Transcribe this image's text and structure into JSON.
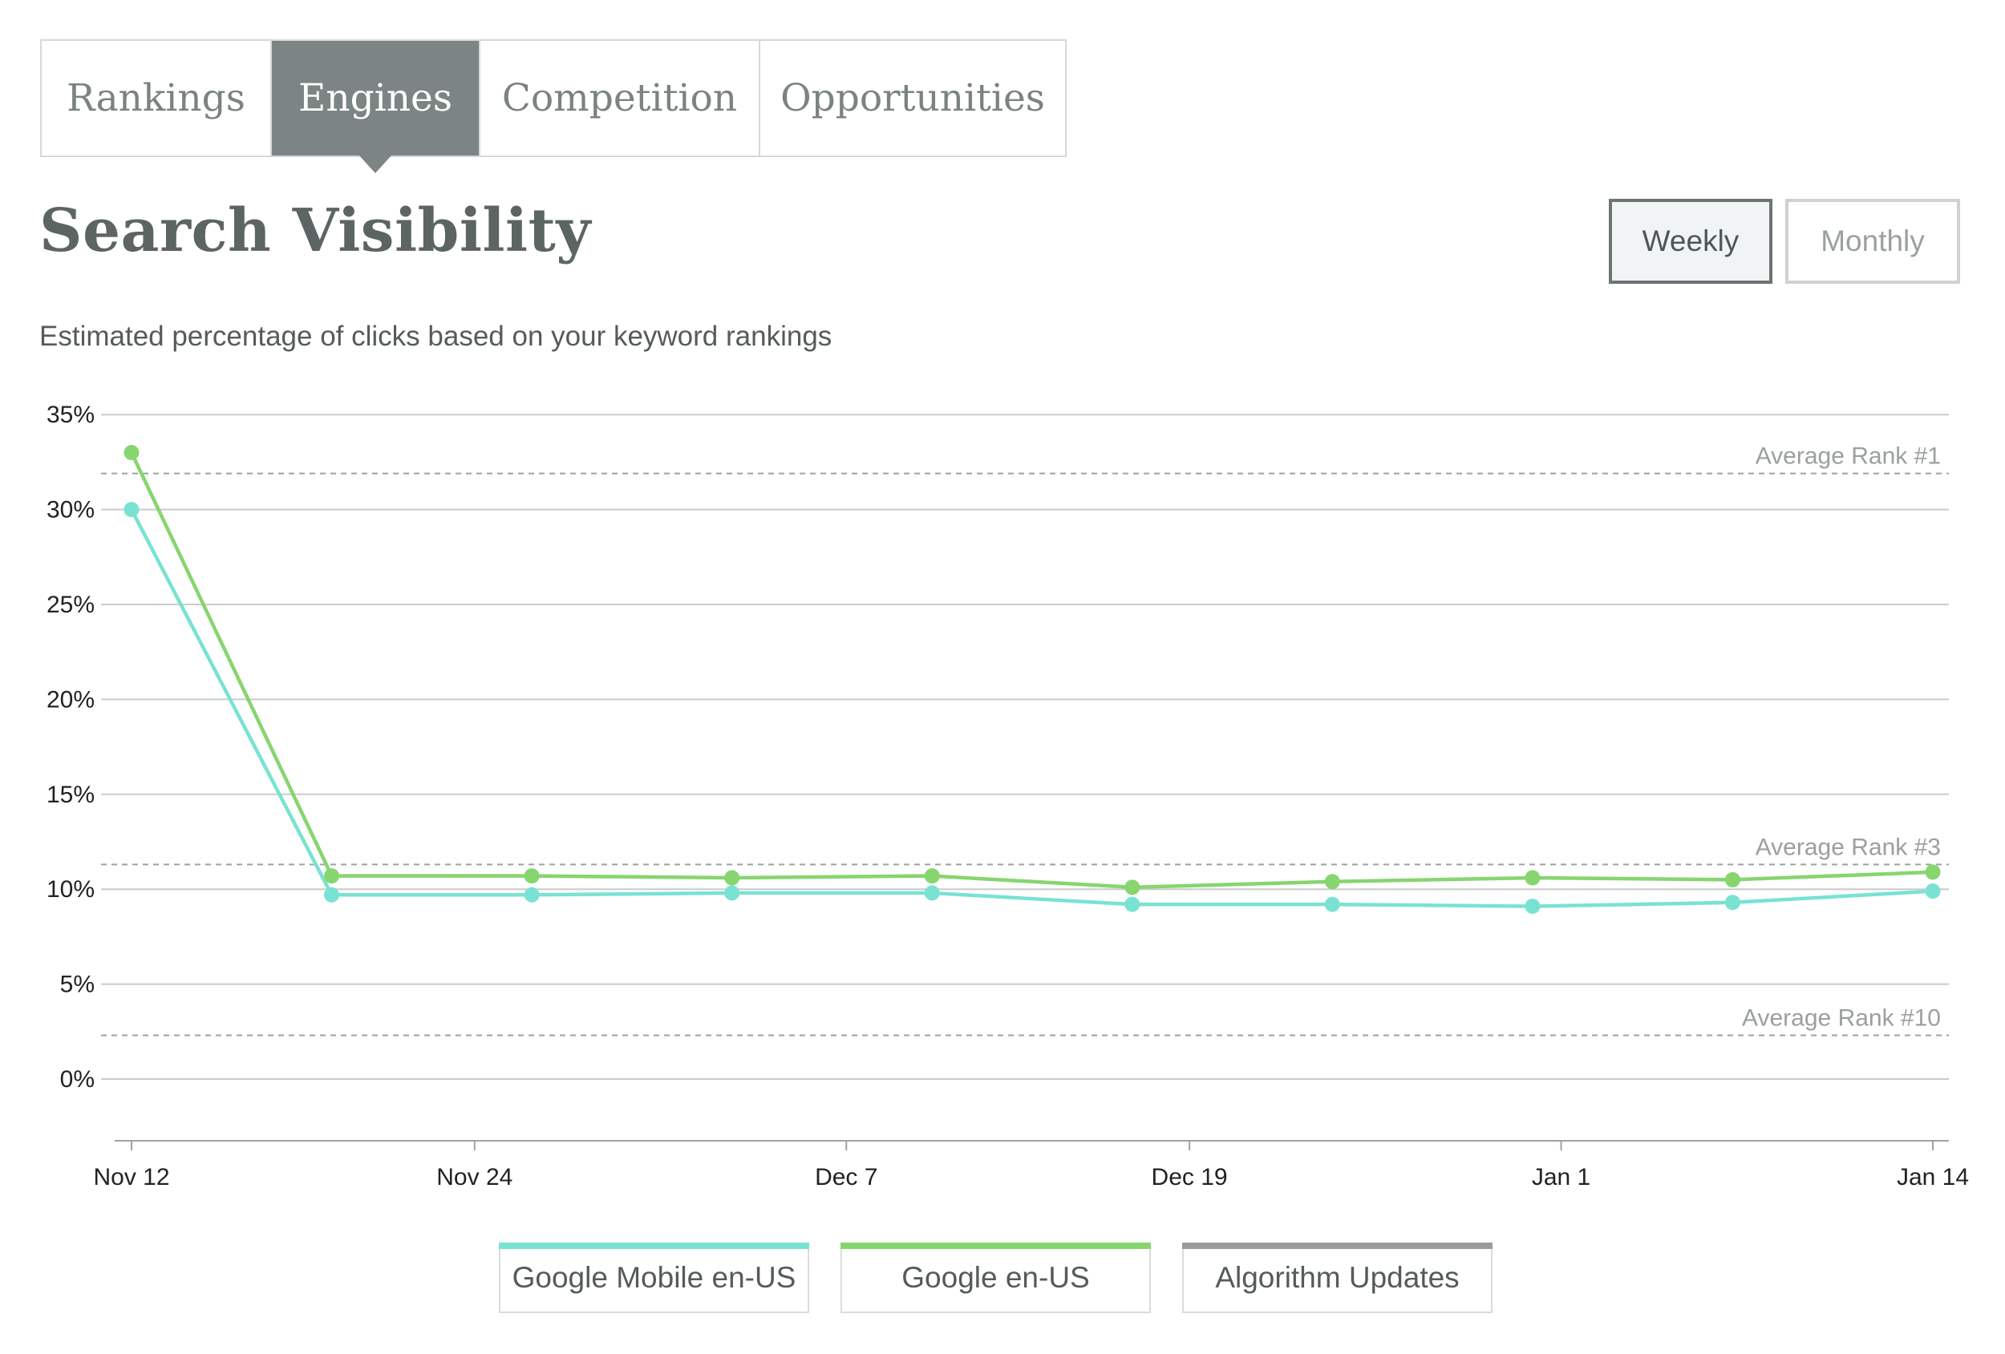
{
  "tabs": [
    {
      "label": "Rankings",
      "active": false
    },
    {
      "label": "Engines",
      "active": true
    },
    {
      "label": "Competition",
      "active": false
    },
    {
      "label": "Opportunities",
      "active": false
    }
  ],
  "title": "Search Visibility",
  "subtitle": "Estimated percentage of clicks based on your keyword rankings",
  "period": {
    "weekly_label": "Weekly",
    "monthly_label": "Monthly",
    "selected": "Weekly"
  },
  "legend": [
    {
      "label": "Google Mobile en-US",
      "color": "#79e2d3"
    },
    {
      "label": "Google en-US",
      "color": "#87d56f"
    },
    {
      "label": "Algorithm Updates",
      "color": "#9a9c9c"
    }
  ],
  "chart_data": {
    "type": "line",
    "x": [
      "2017-11-12",
      "2017-11-19",
      "2017-11-26",
      "2017-12-03",
      "2017-12-10",
      "2017-12-17",
      "2017-12-24",
      "2017-12-31",
      "2018-01-07",
      "2018-01-14"
    ],
    "x_ticks": [
      {
        "date": "2017-11-12",
        "label": "Nov 12"
      },
      {
        "date": "2017-11-24",
        "label": "Nov 24"
      },
      {
        "date": "2017-12-07",
        "label": "Dec 7"
      },
      {
        "date": "2017-12-19",
        "label": "Dec 19"
      },
      {
        "date": "2018-01-01",
        "label": "Jan 1"
      },
      {
        "date": "2018-01-14",
        "label": "Jan 14"
      }
    ],
    "series": [
      {
        "name": "Google Mobile en-US",
        "color": "#79e2d3",
        "values": [
          30.0,
          9.7,
          9.7,
          9.8,
          9.8,
          9.2,
          9.2,
          9.1,
          9.3,
          9.9
        ]
      },
      {
        "name": "Google en-US",
        "color": "#87d56f",
        "values": [
          33.0,
          10.7,
          10.7,
          10.6,
          10.7,
          10.1,
          10.4,
          10.6,
          10.5,
          10.9
        ]
      }
    ],
    "reference_lines": [
      {
        "label": "Average Rank #1",
        "value": 31.9
      },
      {
        "label": "Average Rank #3",
        "value": 11.3
      },
      {
        "label": "Average Rank #10",
        "value": 2.3
      }
    ],
    "ylim": [
      -3.3,
      35
    ],
    "yticks": [
      0,
      5,
      10,
      15,
      20,
      25,
      30,
      35
    ],
    "ytick_suffix": "%",
    "grid": true,
    "legend_position": "bottom-center"
  }
}
